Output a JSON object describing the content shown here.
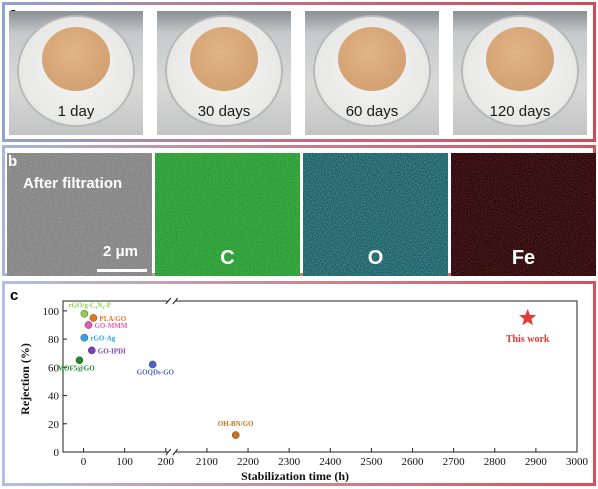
{
  "panel_a": {
    "label": "a",
    "photos": [
      {
        "caption": "1 day"
      },
      {
        "caption": "30 days"
      },
      {
        "caption": "60 days"
      },
      {
        "caption": "120 days"
      }
    ]
  },
  "panel_b": {
    "label": "b",
    "sem_title": "After filtration",
    "scale_bar": "2 μm",
    "maps": [
      {
        "element": "C",
        "color": "#1f8c22"
      },
      {
        "element": "O",
        "color": "#1f8f94"
      },
      {
        "element": "Fe",
        "color": "#7a1015"
      }
    ]
  },
  "panel_c": {
    "label": "c"
  },
  "chart_data": {
    "type": "scatter",
    "xlabel": "Stabilization time (h)",
    "ylabel": "Rejection (%)",
    "xlim": [
      -50,
      3000
    ],
    "ylim": [
      0,
      107
    ],
    "broken_axis": {
      "from": 200,
      "to": 2000
    },
    "x_ticks": [
      "0",
      "100",
      "200",
      "2100",
      "2200",
      "2300",
      "2400",
      "2500",
      "2600",
      "2700",
      "2800",
      "2900",
      "3000"
    ],
    "y_ticks": [
      "0",
      "20",
      "40",
      "60",
      "80",
      "100"
    ],
    "points": [
      {
        "label": "rGO/g-C₃N₄-P",
        "x": 2,
        "y": 98,
        "color": "#8fd14f"
      },
      {
        "label": "PLA/GO",
        "x": 24,
        "y": 95,
        "color": "#e87722"
      },
      {
        "label": "GO-MMM",
        "x": 12,
        "y": 90,
        "color": "#e35ab9"
      },
      {
        "label": "rGO-Ag",
        "x": 2,
        "y": 81,
        "color": "#2aa6e8"
      },
      {
        "label": "GO-IPDI",
        "x": 20,
        "y": 72,
        "color": "#7b3fb8"
      },
      {
        "label": "MOF5@GO",
        "x": -10,
        "y": 65,
        "color": "#1b8a2a"
      },
      {
        "label": "GOQDs-GO",
        "x": 168,
        "y": 62,
        "color": "#4a63c9"
      },
      {
        "label": "OH-BN/GO",
        "x": 2170,
        "y": 12,
        "color": "#c9711d"
      }
    ],
    "highlight": {
      "label": "This work",
      "x": 2880,
      "y": 95,
      "color": "#e53935",
      "marker": "star"
    }
  }
}
